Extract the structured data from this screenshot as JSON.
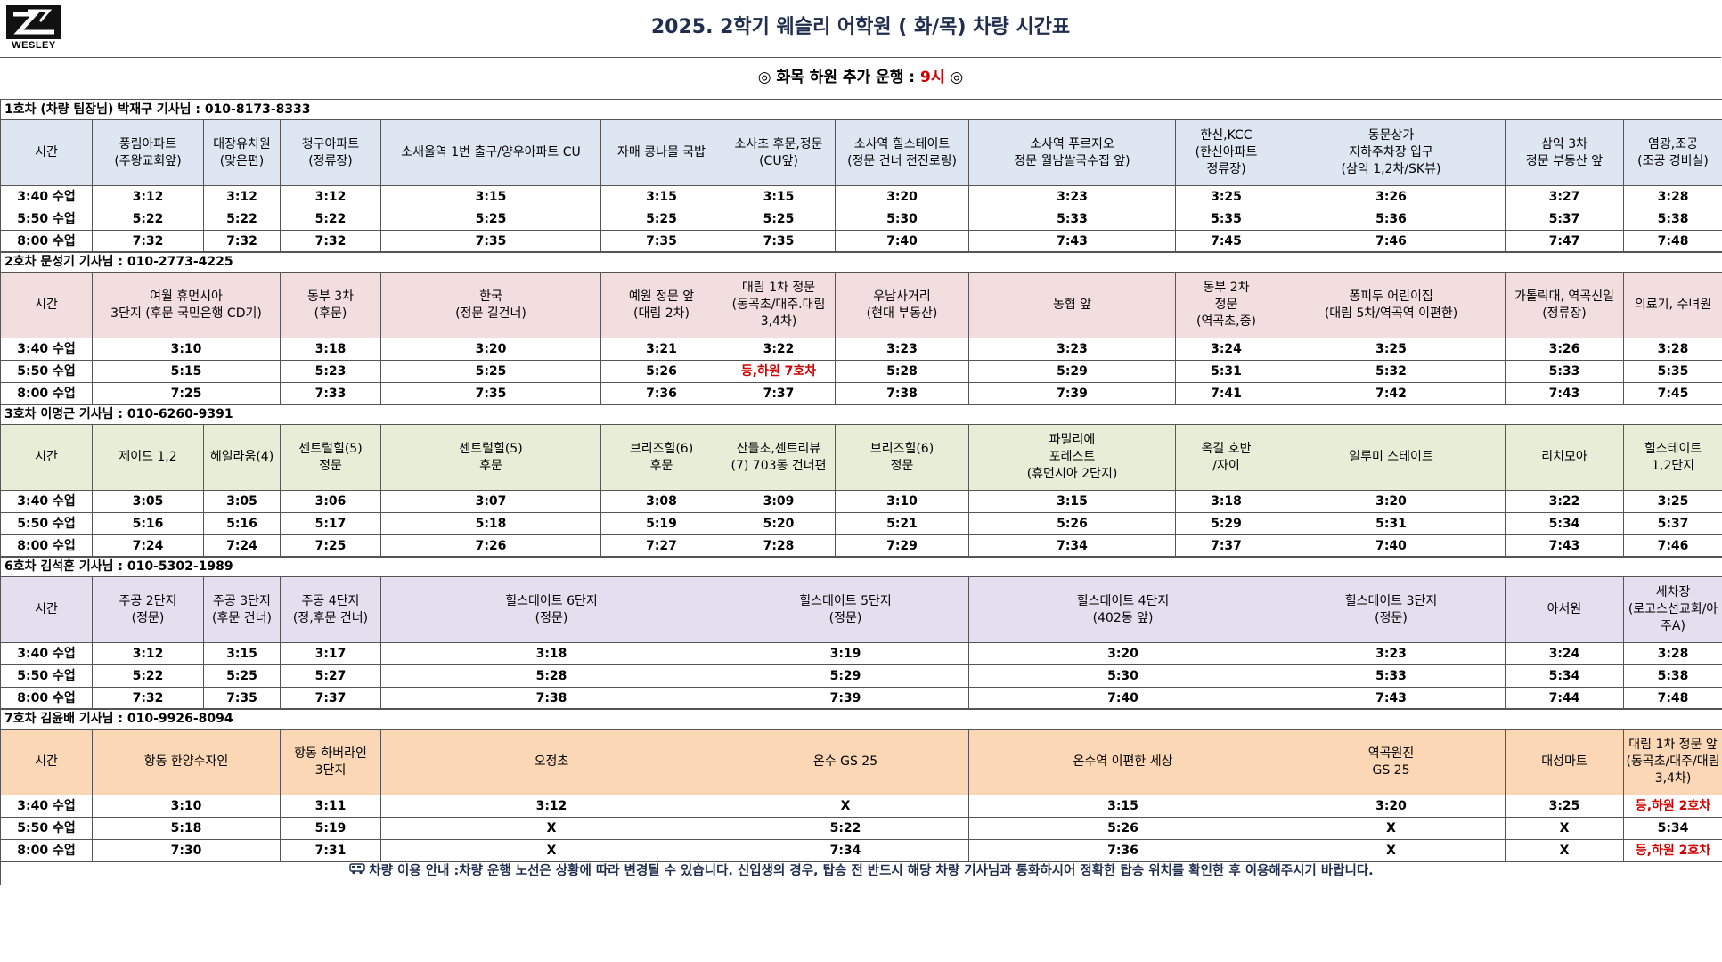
{
  "logo_text": "WESLEY",
  "title": "2025. 2학기 웨슬리 어학원 ( 화/목) 차량 시간표",
  "notice": {
    "prefix": "◎ 화목 하원 추가 운행 : ",
    "highlight": "9시",
    "suffix": " ◎"
  },
  "colors": {
    "route1": "#dde6f1",
    "route2": "#f2dede",
    "route3": "#e6eed8",
    "route6": "#e3dfee",
    "route7": "#fbd7b6",
    "accent_red": "#d00000"
  },
  "routes": [
    {
      "label": "1호차 (차량 팀장님) 박재구 기사님 : 010-8173-8333",
      "time_header": "시간",
      "stops": [
        "풍림아파트\n(주왕교회앞)",
        "대장유치원\n(맞은편)",
        "청구아파트\n(정류장)",
        "소새울역 1번 출구/양우아파트 CU",
        "자매 콩나물 국밥",
        "소사초 후문,정문\n(CU앞)",
        "소사역 힐스테이트\n(정문 건너 전진로링)",
        "소사역 푸르지오\n정문 월남쌀국수집 앞)",
        "한신,KCC\n(한신아파트\n정류장)",
        "동문상가\n지하주차장 입구\n(삼익 1,2차/SK뷰)",
        "삼익 3차\n정문 부동산 앞",
        "염광,조공\n(조공 경비실)"
      ],
      "rows": [
        {
          "time": "3:40 수업",
          "values": [
            "3:12",
            "3:12",
            "3:12",
            "3:15",
            "3:15",
            "3:15",
            "3:20",
            "3:23",
            "3:25",
            "3:26",
            "3:27",
            "3:28"
          ]
        },
        {
          "time": "5:50 수업",
          "values": [
            "5:22",
            "5:22",
            "5:22",
            "5:25",
            "5:25",
            "5:25",
            "5:30",
            "5:33",
            "5:35",
            "5:36",
            "5:37",
            "5:38"
          ]
        },
        {
          "time": "8:00 수업",
          "values": [
            "7:32",
            "7:32",
            "7:32",
            "7:35",
            "7:35",
            "7:35",
            "7:40",
            "7:43",
            "7:45",
            "7:46",
            "7:47",
            "7:48"
          ]
        }
      ]
    },
    {
      "label": "2호차 문성기 기사님 : 010-2773-4225",
      "time_header": "시간",
      "stops": [
        "여월 휴먼시아\n3단지 (후문 국민은행 CD기)",
        "동부 3차\n(후문)",
        "한국\n(정문 길건너)",
        "예원 정문 앞\n(대림 2차)",
        "대림 1차 정문\n(동곡초/대주.대림\n3,4차)",
        "우남사거리\n(현대 부동산)",
        "농협 앞",
        "동부 2차\n정문\n(역곡초,중)",
        "퐁피두 어린이집\n(대림 5차/역곡역 이편한)",
        "가톨릭대, 역곡신일\n(정류장)",
        "의료기, 수녀원"
      ],
      "rows": [
        {
          "time": "3:40 수업",
          "values": [
            "3:10",
            "3:18",
            "3:20",
            "3:21",
            "3:22",
            "3:23",
            "3:23",
            "3:24",
            "3:25",
            "3:26",
            "3:28"
          ]
        },
        {
          "time": "5:50 수업",
          "values": [
            "5:15",
            "5:23",
            "5:25",
            "5:26",
            "등,하원 7호차",
            "5:28",
            "5:29",
            "5:31",
            "5:32",
            "5:33",
            "5:35"
          ]
        },
        {
          "time": "8:00 수업",
          "values": [
            "7:25",
            "7:33",
            "7:35",
            "7:36",
            "7:37",
            "7:38",
            "7:39",
            "7:41",
            "7:42",
            "7:43",
            "7:45"
          ]
        }
      ]
    },
    {
      "label": "3호차 이명근 기사님 : 010-6260-9391",
      "time_header": "시간",
      "stops": [
        "제이드 1,2",
        "헤일라움(4)",
        "센트럴힐(5)\n정문",
        "센트럴힐(5)\n후문",
        "브리즈힐(6)\n후문",
        "산들초,센트리뷰\n(7) 703동 건너편",
        "브리즈힐(6)\n정문",
        "파밀리에\n포레스트\n(휴먼시아 2단지)",
        "옥길 호반\n/자이",
        "일루미 스테이트",
        "리치모아",
        "힐스테이트\n1,2단지"
      ],
      "rows": [
        {
          "time": "3:40 수업",
          "values": [
            "3:05",
            "3:05",
            "3:06",
            "3:07",
            "3:08",
            "3:09",
            "3:10",
            "3:15",
            "3:18",
            "3:20",
            "3:22",
            "3:25"
          ]
        },
        {
          "time": "5:50 수업",
          "values": [
            "5:16",
            "5:16",
            "5:17",
            "5:18",
            "5:19",
            "5:20",
            "5:21",
            "5:26",
            "5:29",
            "5:31",
            "5:34",
            "5:37"
          ]
        },
        {
          "time": "8:00 수업",
          "values": [
            "7:24",
            "7:24",
            "7:25",
            "7:26",
            "7:27",
            "7:28",
            "7:29",
            "7:34",
            "7:37",
            "7:40",
            "7:43",
            "7:46"
          ]
        }
      ]
    },
    {
      "label": "6호차 김석훈 기사님 : 010-5302-1989",
      "time_header": "시간",
      "stops": [
        "주공 2단지\n(정문)",
        "주공 3단지\n(후문 건너)",
        "주공 4단지\n(정,후문 건너)",
        "힐스테이트 6단지\n(정문)",
        "힐스테이트 5단지\n(정문)",
        "힐스테이트 4단지\n(402동 앞)",
        "힐스테이트 3단지\n(정문)",
        "아서원",
        "세차장\n(로고스선교회/아주A)"
      ],
      "rows": [
        {
          "time": "3:40 수업",
          "values": [
            "3:12",
            "3:15",
            "3:17",
            "3:18",
            "3:19",
            "3:20",
            "3:23",
            "3:24",
            "3:28"
          ]
        },
        {
          "time": "5:50 수업",
          "values": [
            "5:22",
            "5:25",
            "5:27",
            "5:28",
            "5:29",
            "5:30",
            "5:33",
            "5:34",
            "5:38"
          ]
        },
        {
          "time": "8:00 수업",
          "values": [
            "7:32",
            "7:35",
            "7:37",
            "7:38",
            "7:39",
            "7:40",
            "7:43",
            "7:44",
            "7:48"
          ]
        }
      ]
    },
    {
      "label": "7호차 김윤배 기사님 : 010-9926-8094",
      "time_header": "시간",
      "stops": [
        "항동 한양수자인",
        "항동 하버라인\n3단지",
        "오정초",
        "온수 GS 25",
        "온수역 이편한 세상",
        "역곡원진\nGS 25",
        "대성마트",
        "대림 1차 정문 앞\n(동곡초/대주/대림3,4차)"
      ],
      "rows": [
        {
          "time": "3:40 수업",
          "values": [
            "3:10",
            "3:11",
            "3:12",
            "X",
            "3:15",
            "3:20",
            "3:25",
            "등,하원 2호차"
          ]
        },
        {
          "time": "5:50 수업",
          "values": [
            "5:18",
            "5:19",
            "X",
            "5:22",
            "5:26",
            "X",
            "X",
            "5:34"
          ]
        },
        {
          "time": "8:00 수업",
          "values": [
            "7:30",
            "7:31",
            "X",
            "7:34",
            "7:36",
            "X",
            "X",
            "등,하원 2호차"
          ]
        }
      ]
    }
  ],
  "footer": "차량 이용 안내 :차량 운행 노선은 상황에 따라 변경될 수 있습니다.      신입생의 경우, 탑승 전 반드시 해당 차량 기사님과 통화하시어 정확한 탑승 위치를 확인한 후 이용해주시기 바랍니다."
}
